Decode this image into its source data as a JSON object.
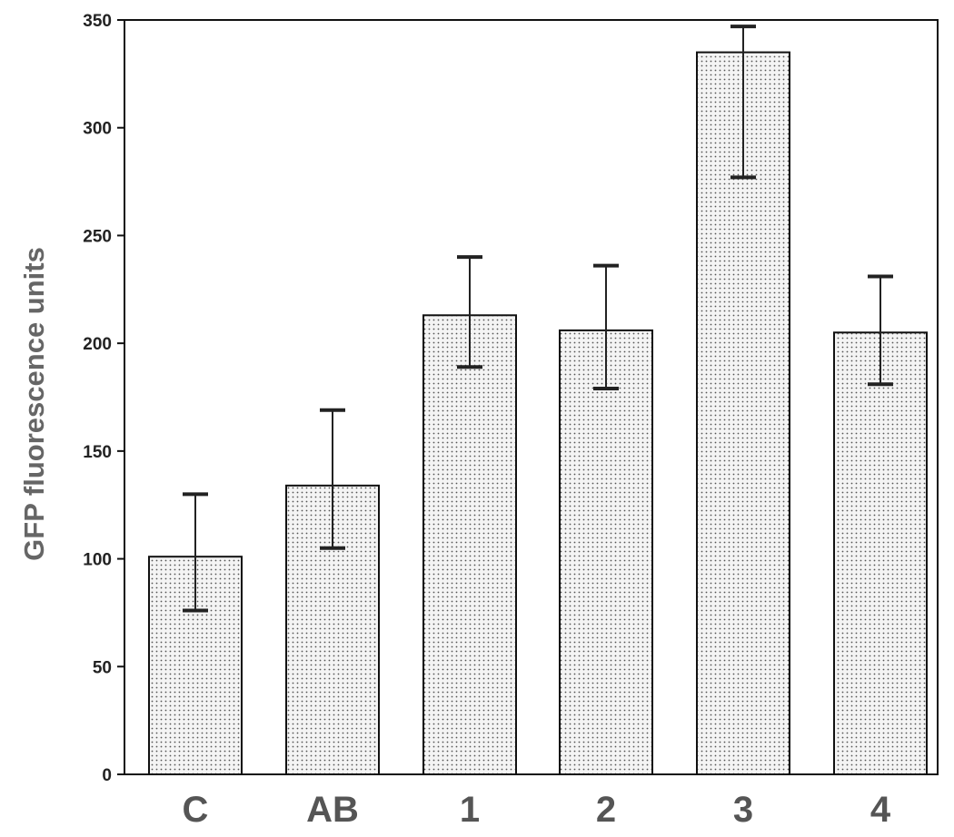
{
  "chart_data": {
    "type": "bar",
    "title": "",
    "xlabel": "",
    "ylabel": "GFP fluorescence units",
    "categories": [
      "C",
      "AB",
      "1",
      "2",
      "3",
      "4"
    ],
    "values": [
      101,
      134,
      213,
      206,
      335,
      205
    ],
    "error_upper": [
      130,
      169,
      240,
      236,
      347,
      231
    ],
    "error_lower": [
      76,
      105,
      189,
      179,
      277,
      181
    ],
    "ylim": [
      0,
      350
    ],
    "yticks": [
      0,
      50,
      100,
      150,
      200,
      250,
      300,
      350
    ],
    "grid": false,
    "legend": "none",
    "bar_fill": "dotted",
    "colors": {
      "bar_fill": "#f4f4f4",
      "dots": "#555555",
      "outline": "#111111",
      "error_bar": "#222222"
    }
  }
}
